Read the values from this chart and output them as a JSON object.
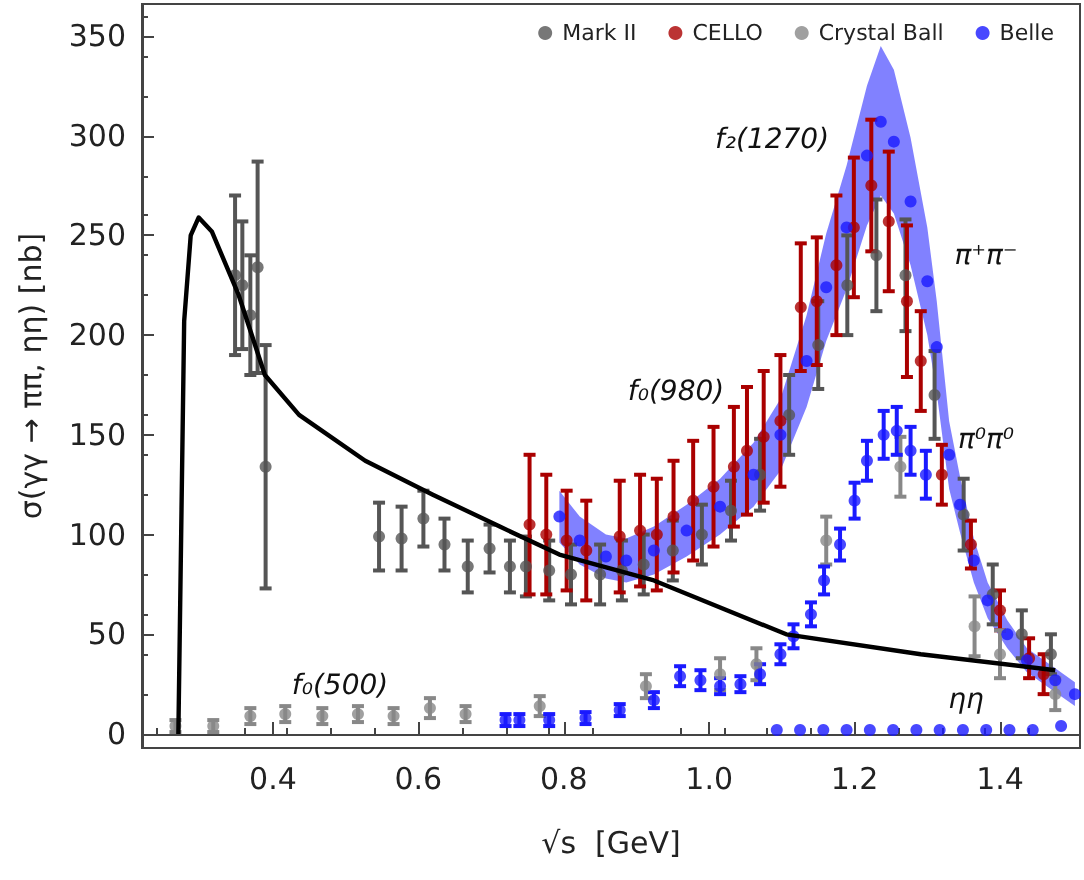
{
  "chart_data": {
    "type": "scatter",
    "xlabel": "√s  [GeV]",
    "ylabel": "σ(γγ → ππ, ηη) [nb]",
    "xlim": [
      0.22,
      1.51
    ],
    "ylim": [
      -7,
      366
    ],
    "xticks": [
      0.4,
      0.6,
      0.8,
      {
        "value": 1,
        "label": "1.0"
      },
      1.2,
      1.4
    ],
    "yticks": [
      0,
      50,
      100,
      150,
      200,
      250,
      300,
      350
    ],
    "legend": "top right",
    "marker": "circle",
    "annotations": [
      "f₀(500)",
      "f₀(980)",
      "f₂(1270)",
      "π⁺π⁻",
      "π⁰π⁰",
      "ηη"
    ],
    "series": [
      {
        "type": "line",
        "marker": "none",
        "line_style": "solid",
        "color": "#000000",
        "x": [
          0.27,
          0.278,
          0.287,
          0.298,
          0.316,
          0.353,
          0.389,
          0.436,
          0.527,
          0.62,
          0.712,
          0.794,
          0.924,
          1.106,
          1.291,
          1.476
        ],
        "values": [
          0,
          207,
          250,
          259,
          252,
          220,
          180,
          160,
          137,
          120,
          104,
          90,
          77,
          50,
          40,
          32
        ]
      },
      {
        "name": "Mark II",
        "color": "#555555",
        "x": [
          0.348,
          0.358,
          0.369,
          0.379,
          0.39,
          0.546,
          0.577,
          0.607,
          0.636,
          0.668,
          0.698,
          0.726,
          0.748,
          0.78,
          0.81,
          0.85,
          0.88,
          0.91,
          0.95,
          0.99,
          1.03,
          1.07,
          1.11,
          1.15,
          1.19,
          1.23,
          1.27,
          1.31,
          1.35,
          1.39,
          1.43,
          1.47
        ],
        "values": [
          230,
          225,
          210,
          234,
          134,
          99,
          98,
          108,
          95,
          84,
          93,
          84,
          84,
          82,
          80,
          80,
          82,
          85,
          92,
          100,
          112,
          130,
          160,
          195,
          225,
          240,
          230,
          170,
          110,
          70,
          50,
          40
        ],
        "errors": [
          40,
          32,
          30,
          53,
          61,
          17,
          16,
          14,
          13,
          13,
          12,
          13,
          15,
          15,
          15,
          15,
          15,
          15,
          15,
          15,
          15,
          18,
          20,
          22,
          25,
          28,
          28,
          22,
          18,
          15,
          12,
          10
        ]
      },
      {
        "name": "CELLO",
        "color": "#aa0000",
        "x": [
          0.753,
          0.776,
          0.804,
          0.831,
          0.877,
          0.905,
          0.928,
          0.951,
          0.978,
          1.006,
          1.034,
          1.052,
          1.075,
          1.098,
          1.126,
          1.148,
          1.175,
          1.199,
          1.223,
          1.247,
          1.272,
          1.291,
          1.32,
          1.36,
          1.4,
          1.44,
          1.46
        ],
        "values": [
          105,
          100,
          97,
          92,
          99,
          102,
          100,
          109,
          117,
          124,
          134,
          142,
          149,
          157,
          214,
          217,
          235,
          254,
          275,
          257,
          217,
          187,
          130,
          95,
          62,
          38,
          30
        ],
        "errors": [
          35,
          30,
          25,
          25,
          28,
          28,
          28,
          28,
          30,
          30,
          30,
          32,
          33,
          33,
          32,
          32,
          35,
          35,
          33,
          35,
          38,
          25,
          15,
          12,
          10,
          10,
          10
        ]
      },
      {
        "name": "Crystal Ball",
        "color": "#888888",
        "x": [
          0.266,
          0.318,
          0.369,
          0.417,
          0.468,
          0.517,
          0.566,
          0.616,
          0.665,
          0.767,
          0.913,
          1.015,
          1.065,
          1.161,
          1.263,
          1.365,
          1.4,
          1.476
        ],
        "values": [
          4,
          4,
          9,
          10,
          9,
          10,
          9,
          13,
          10,
          14,
          24,
          30,
          35,
          97,
          134,
          54,
          40,
          20
        ],
        "errors": [
          3,
          3,
          4,
          4,
          4,
          4,
          4,
          5,
          4,
          5,
          6,
          8,
          8,
          12,
          15,
          15,
          12,
          8
        ]
      },
      {
        "name": "Belle",
        "color": "#1a1aff",
        "x": [
          0.794,
          0.822,
          0.858,
          0.886,
          0.924,
          0.969,
          1.015,
          1.061,
          1.098,
          1.134,
          1.161,
          1.189,
          1.217,
          1.236,
          1.254,
          1.277,
          1.3,
          1.313,
          1.33,
          1.345,
          1.364,
          1.383,
          1.41,
          1.437,
          1.476,
          1.503
        ],
        "values": [
          109,
          97,
          89,
          87,
          92,
          102,
          114,
          130,
          150,
          187,
          224,
          254,
          290,
          307,
          297,
          267,
          227,
          194,
          140,
          115,
          87,
          67,
          50,
          37,
          27,
          20
        ],
        "lower": [
          96,
          85,
          78,
          76,
          80,
          89,
          100,
          114,
          132,
          164,
          197,
          223,
          255,
          270,
          261,
          235,
          200,
          171,
          123,
          101,
          76,
          58,
          43,
          31,
          21,
          14
        ],
        "upper": [
          122,
          109,
          100,
          98,
          104,
          115,
          128,
          146,
          168,
          210,
          251,
          285,
          325,
          345,
          333,
          299,
          254,
          217,
          157,
          129,
          98,
          76,
          57,
          43,
          33,
          26
        ]
      },
      {
        "color": "#1a1aff",
        "x": [
          0.72,
          0.739,
          0.78,
          0.83,
          0.877,
          0.924,
          0.96,
          0.988,
          1.015,
          1.043,
          1.07,
          1.098,
          1.116,
          1.14,
          1.158,
          1.18,
          1.2,
          1.217,
          1.24,
          1.258,
          1.277,
          1.298
        ],
        "values": [
          7,
          7,
          7,
          8,
          12,
          17,
          29,
          27,
          24,
          25,
          30,
          40,
          49,
          60,
          77,
          95,
          117,
          137,
          150,
          152,
          142,
          130
        ],
        "errors": [
          3,
          3,
          3,
          3,
          3,
          4,
          5,
          5,
          4,
          4,
          5,
          5,
          6,
          6,
          7,
          8,
          9,
          10,
          12,
          12,
          12,
          12
        ]
      },
      {
        "color": "#1a1aff",
        "x": [
          1.093,
          1.125,
          1.157,
          1.189,
          1.221,
          1.253,
          1.285,
          1.317,
          1.349,
          1.381,
          1.413,
          1.445,
          1.484
        ],
        "values": [
          2,
          2,
          2,
          2,
          2,
          2,
          2,
          2,
          2,
          2,
          2,
          2,
          4
        ]
      }
    ]
  }
}
